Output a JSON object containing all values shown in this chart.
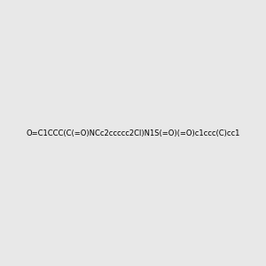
{
  "smiles": "O=C1CCC(C(=O)NCc2ccccc2Cl)N1S(=O)(=O)c1ccc(C)cc1",
  "image_size": 300,
  "background_color": "#e8e8e8"
}
